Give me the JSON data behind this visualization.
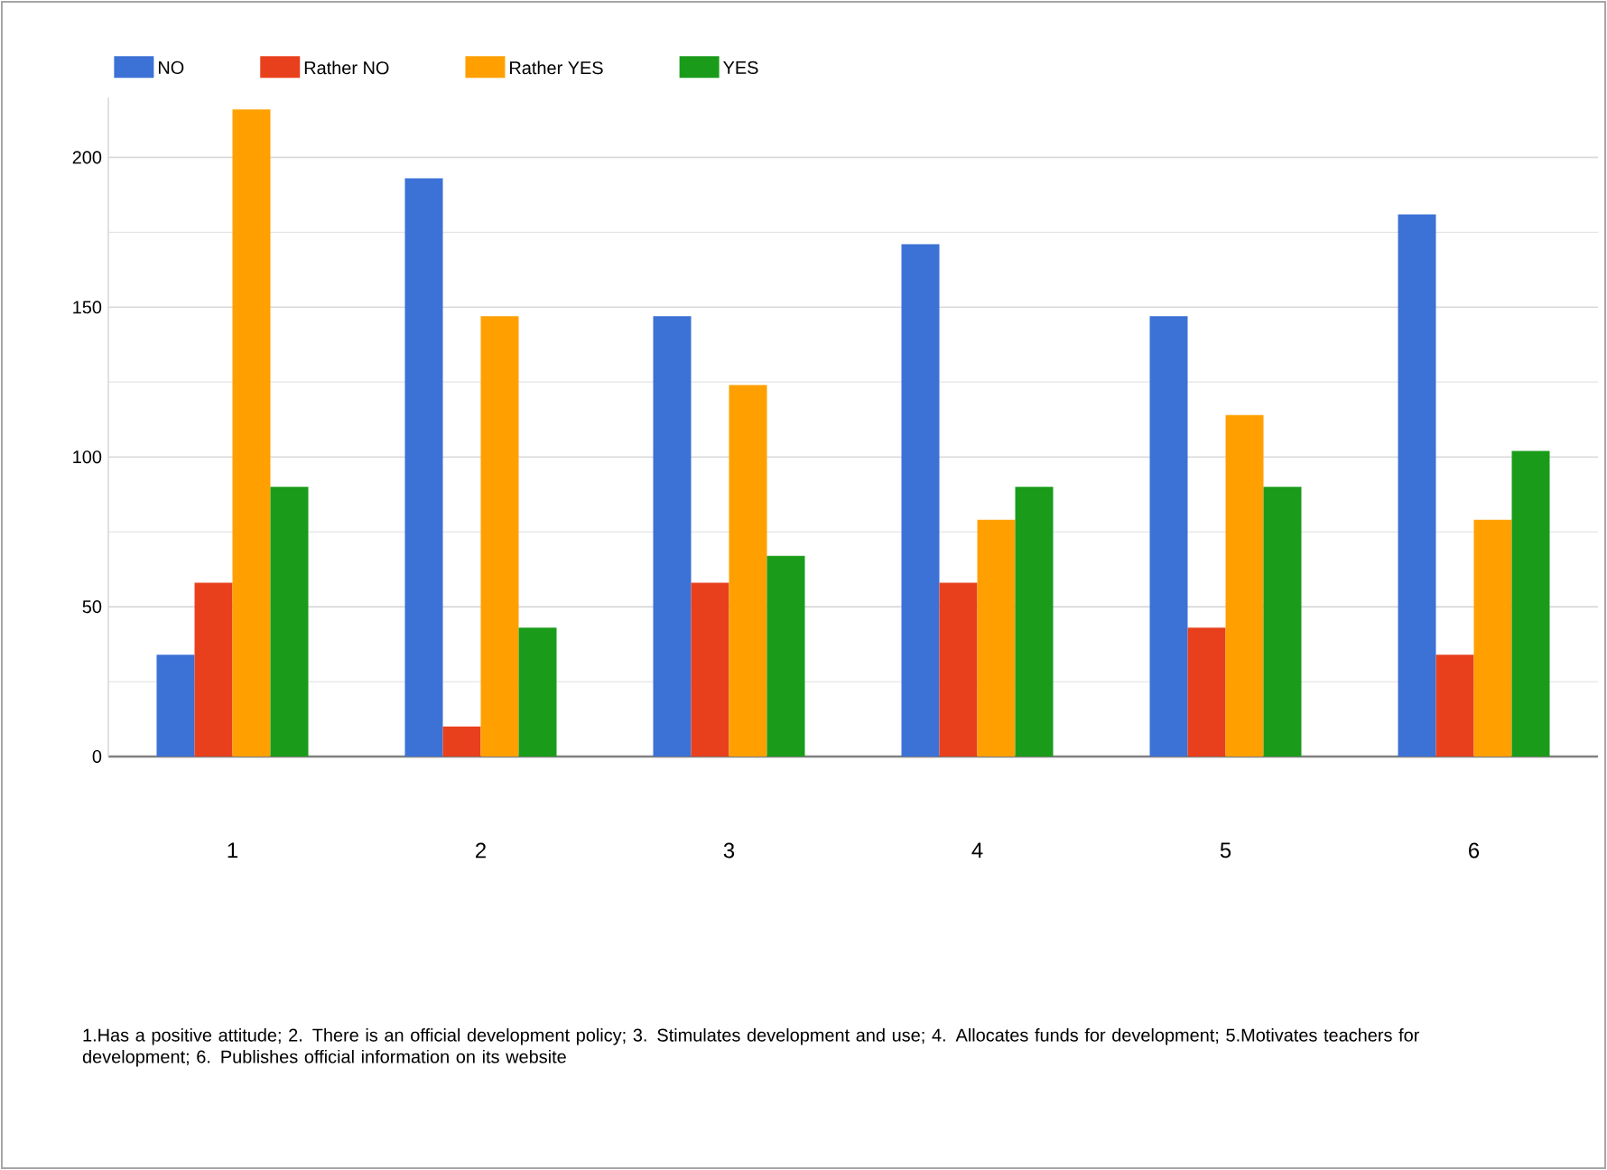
{
  "chart_data": {
    "type": "bar",
    "categories": [
      "1",
      "2",
      "3",
      "4",
      "5",
      "6"
    ],
    "series": [
      {
        "name": "NO",
        "color": "#3c71d6",
        "values": [
          34,
          193,
          147,
          171,
          147,
          181
        ]
      },
      {
        "name": "Rather NO",
        "color": "#e8401c",
        "values": [
          58,
          10,
          58,
          58,
          43,
          34
        ]
      },
      {
        "name": "Rather YES",
        "color": "#ffa000",
        "values": [
          216,
          147,
          124,
          79,
          114,
          79
        ]
      },
      {
        "name": "YES",
        "color": "#1a9c1a",
        "values": [
          90,
          43,
          67,
          90,
          90,
          102
        ]
      }
    ],
    "ylim": [
      0,
      220
    ],
    "yticks": [
      0,
      50,
      100,
      150,
      200
    ],
    "grid": "y",
    "legend": "top left",
    "annotations": [
      "1.Has a positive attitude; 2. There is an official development policy; 3. Stimulates development and use; 4. Allocates funds for development; 5.Motivates teachers for development; 6. Publishes official information on its website"
    ]
  }
}
